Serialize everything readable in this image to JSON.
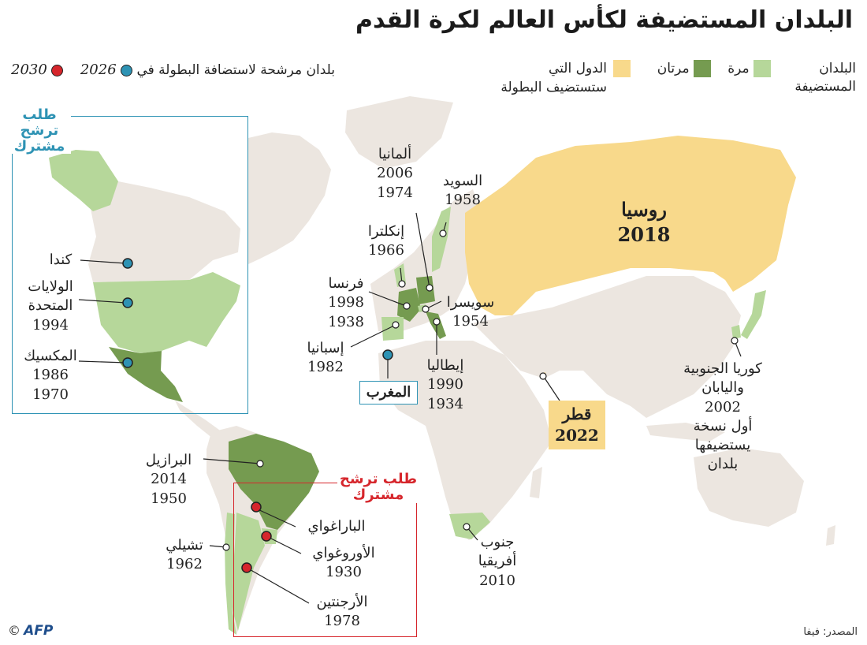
{
  "title": "البلدان المستضيفة لكأس العالم لكرة القدم",
  "legend": {
    "hosts_label": "البلدان المستضيفة",
    "once": "مرة",
    "twice": "مرتان",
    "future": "الدول التي ستستضيف البطولة",
    "candidates": "بلدان مرشحة لاستضافة البطولة في",
    "year_2026": "2026",
    "year_2030": "2030"
  },
  "colors": {
    "once": "#b6d79a",
    "twice": "#759b50",
    "future": "#f8d98b",
    "other_land": "#ece6e0",
    "candidate_2026": "#2e93b4",
    "candidate_2030": "#d6262c"
  },
  "bids": {
    "north_america": "طلب ترشح مشترك",
    "south_america": "طلب ترشح مشترك"
  },
  "countries": {
    "russia": {
      "name": "روسيا",
      "years": "2018"
    },
    "germany": {
      "name": "ألمانيا",
      "years": [
        "2006",
        "1974"
      ]
    },
    "sweden": {
      "name": "السويد",
      "years": "1958"
    },
    "england": {
      "name": "إنكلترا",
      "years": "1966"
    },
    "france": {
      "name": "فرنسا",
      "years": [
        "1998",
        "1938"
      ]
    },
    "switzerland": {
      "name": "سويسرا",
      "years": "1954"
    },
    "spain": {
      "name": "إسبانيا",
      "years": "1982"
    },
    "italy": {
      "name": "إيطاليا",
      "years": [
        "1990",
        "1934"
      ]
    },
    "morocco": {
      "name": "المغرب"
    },
    "qatar": {
      "name": "قطر",
      "years": "2022"
    },
    "korea_japan": {
      "name_line1": "كوريا الجنوبية",
      "name_line2": "واليابان",
      "years": "2002",
      "note_line1": "أول نسخة",
      "note_line2": "يستضيفها",
      "note_line3": "بلدان"
    },
    "canada": {
      "name": "كندا"
    },
    "usa": {
      "name_line1": "الولايات",
      "name_line2": "المتحدة",
      "years": "1994"
    },
    "mexico": {
      "name": "المكسيك",
      "years": [
        "1986",
        "1970"
      ]
    },
    "brazil": {
      "name": "البرازيل",
      "years": [
        "2014",
        "1950"
      ]
    },
    "chile": {
      "name": "تشيلي",
      "years": "1962"
    },
    "paraguay": {
      "name": "الباراغواي"
    },
    "uruguay": {
      "name": "الأوروغواي",
      "years": "1930"
    },
    "argentina": {
      "name": "الأرجنتين",
      "years": "1978"
    },
    "south_africa": {
      "name_line1": "جنوب",
      "name_line2": "أفريقيا",
      "years": "2010"
    }
  },
  "footer": {
    "source": "المصدر: فيفا",
    "agency": "AFP",
    "copyright": "©"
  }
}
